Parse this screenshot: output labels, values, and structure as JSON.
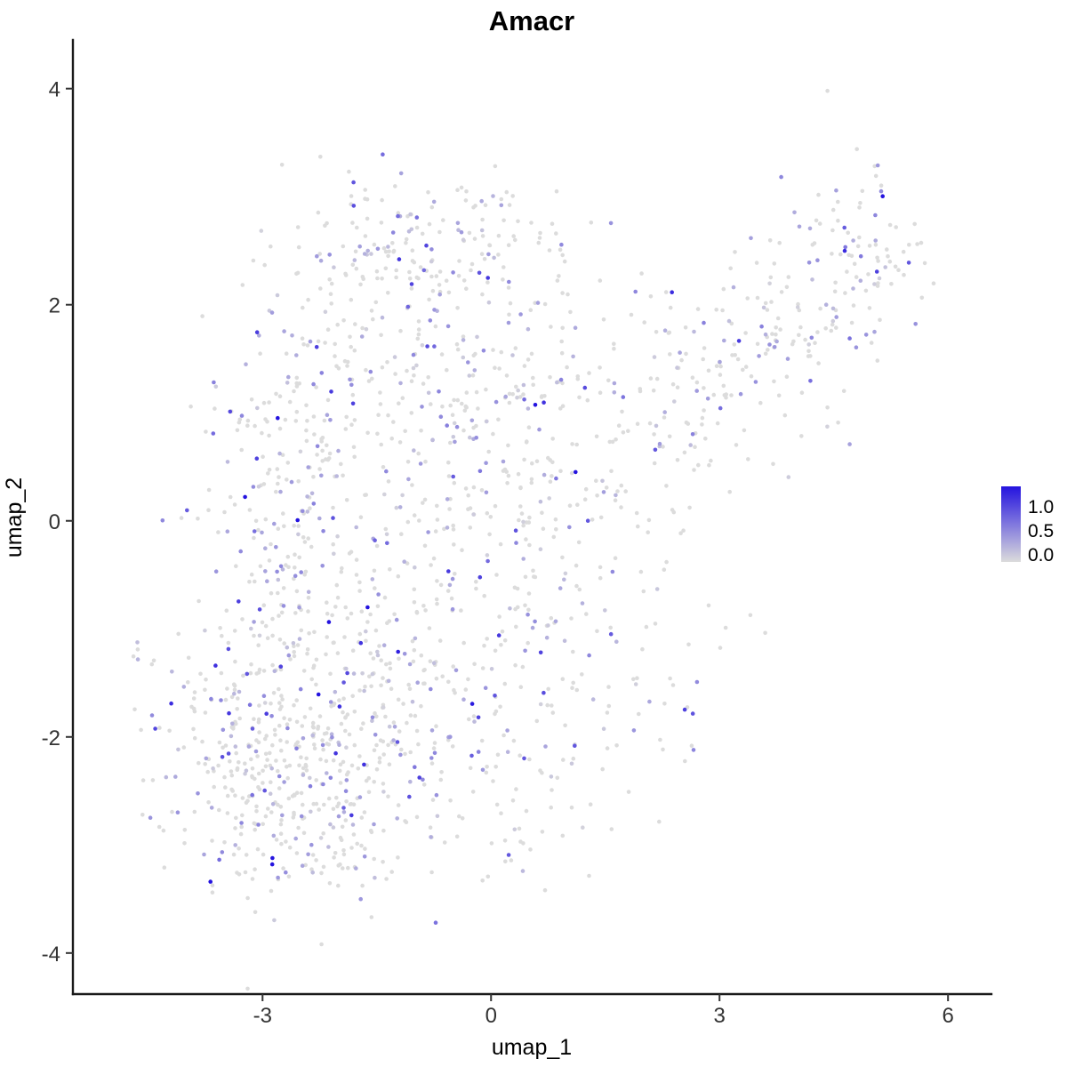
{
  "chart_data": {
    "type": "scatter",
    "title": "Amacr",
    "xlabel": "umap_1",
    "ylabel": "umap_2",
    "xlim": [
      -5.49,
      6.57
    ],
    "ylim": [
      -4.38,
      4.45
    ],
    "x_ticks": [
      -3,
      0,
      3,
      6
    ],
    "y_ticks": [
      -4,
      -2,
      0,
      2,
      4
    ],
    "grid": false,
    "background": "#FFFFFF",
    "point_radius": 2.3,
    "colors": {
      "low": "#DCDCDC",
      "high": "#2413DF"
    },
    "legend": {
      "position": "right",
      "labels": [
        "1.0",
        "0.5",
        "0.0"
      ],
      "values": [
        1.0,
        0.5,
        0.0
      ],
      "max": 1.05
    },
    "point_generator": {
      "seed": 11,
      "value_mix": {
        "p_zero": 0.72,
        "p_low": 0.215,
        "p_mid": 0.057,
        "p_high": 0.008,
        "low_range": [
          0.05,
          0.45
        ],
        "mid_range": [
          0.45,
          0.9
        ],
        "high_range": [
          0.9,
          1.3
        ]
      },
      "clusters": [
        {
          "shape": "blob",
          "cx": -2.7,
          "cy": -2.15,
          "sx": 0.85,
          "sy": 0.6,
          "n": 420
        },
        {
          "shape": "blob",
          "cx": -2.2,
          "cy": -3.0,
          "sx": 0.5,
          "sy": 0.3,
          "n": 70
        },
        {
          "shape": "blob",
          "cx": -2.65,
          "cy": 0.4,
          "sx": 0.6,
          "sy": 1.05,
          "n": 280
        },
        {
          "shape": "blob",
          "cx": -1.1,
          "cy": -1.3,
          "sx": 0.75,
          "sy": 0.75,
          "n": 150
        },
        {
          "shape": "blob",
          "cx": -0.25,
          "cy": 0.1,
          "sx": 0.85,
          "sy": 1.0,
          "n": 210
        },
        {
          "shape": "strip",
          "x0": -2.3,
          "y0": 2.55,
          "x1": 0.9,
          "y1": 2.65,
          "sx": 0.3,
          "sy": 0.3,
          "n": 150
        },
        {
          "shape": "blob",
          "cx": -0.8,
          "cy": 1.6,
          "sx": 1.0,
          "sy": 0.5,
          "n": 110
        },
        {
          "shape": "blob",
          "cx": 1.1,
          "cy": 0.8,
          "sx": 0.85,
          "sy": 0.85,
          "n": 140
        },
        {
          "shape": "strip",
          "x0": 1.9,
          "y0": 0.9,
          "x1": 4.7,
          "y1": 2.2,
          "sx": 0.45,
          "sy": 0.5,
          "n": 200
        },
        {
          "shape": "blob",
          "cx": 4.9,
          "cy": 2.45,
          "sx": 0.35,
          "sy": 0.4,
          "n": 70
        },
        {
          "shape": "blob",
          "cx": 1.7,
          "cy": -1.4,
          "sx": 0.85,
          "sy": 0.65,
          "n": 65
        },
        {
          "shape": "blob",
          "cx": 0.3,
          "cy": -2.4,
          "sx": 0.6,
          "sy": 0.5,
          "n": 60
        },
        {
          "shape": "blob",
          "cx": -4.65,
          "cy": -1.22,
          "sx": 0.07,
          "sy": 0.1,
          "n": 4
        }
      ]
    }
  }
}
